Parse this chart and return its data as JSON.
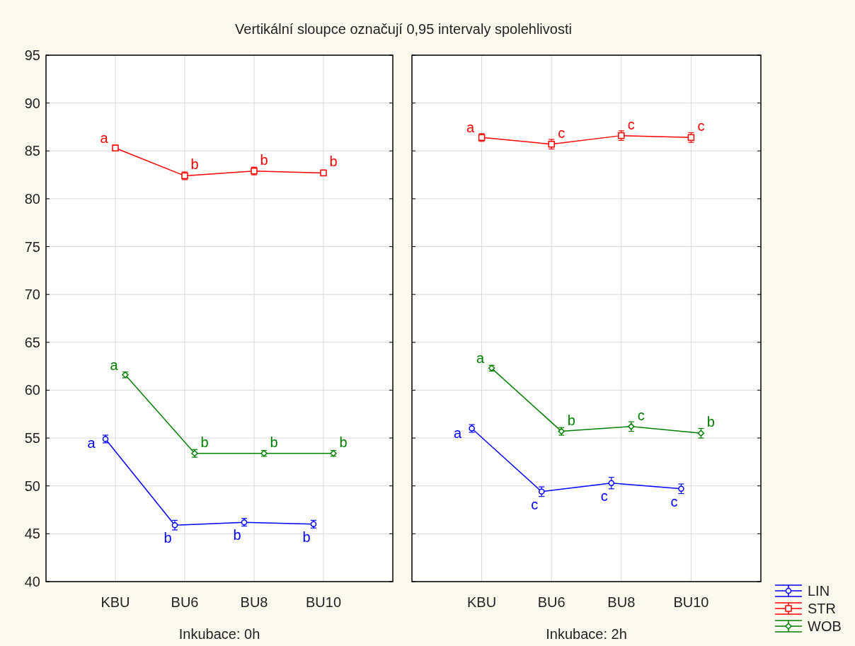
{
  "chart_data": [
    {
      "type": "line",
      "title": "Vertikální sloupce označují 0,95 intervaly spolehlivosti",
      "xlabel": "Inkubace: 0h",
      "categories": [
        "KBU",
        "BU6",
        "BU8",
        "BU10"
      ],
      "ylim": [
        40,
        95
      ],
      "yticks": [
        40,
        45,
        50,
        55,
        60,
        65,
        70,
        75,
        80,
        85,
        90,
        95
      ],
      "grid": true,
      "legend": "bottom right",
      "series": [
        {
          "name": "LIN",
          "color": "#0000ff",
          "marker": "circle",
          "values": [
            54.9,
            45.9,
            46.2,
            46.0
          ],
          "errors": [
            0.4,
            0.5,
            0.4,
            0.4
          ]
        },
        {
          "name": "STR",
          "color": "#ff0000",
          "marker": "square",
          "values": [
            85.3,
            82.4,
            82.9,
            82.7
          ],
          "errors": [
            0.3,
            0.4,
            0.4,
            0.3
          ]
        },
        {
          "name": "WOB",
          "color": "#008000",
          "marker": "diamond",
          "values": [
            61.6,
            53.4,
            53.4,
            53.4
          ],
          "errors": [
            0.3,
            0.4,
            0.3,
            0.3
          ]
        }
      ],
      "annotations": [
        "a",
        "b",
        "b",
        "b",
        "a",
        "b",
        "b",
        "b",
        "a",
        "b",
        "b",
        "b"
      ]
    },
    {
      "type": "line",
      "xlabel": "Inkubace: 2h",
      "categories": [
        "KBU",
        "BU6",
        "BU8",
        "BU10"
      ],
      "ylim": [
        40,
        95
      ],
      "yticks": [
        40,
        45,
        50,
        55,
        60,
        65,
        70,
        75,
        80,
        85,
        90,
        95
      ],
      "grid": true,
      "tick_labels": "x",
      "series": [
        {
          "color": "#0000ff",
          "marker": "circle",
          "values": [
            56.0,
            49.4,
            50.3,
            49.7
          ],
          "errors": [
            0.4,
            0.5,
            0.6,
            0.5
          ]
        },
        {
          "color": "#ff0000",
          "marker": "square",
          "values": [
            86.4,
            85.7,
            86.6,
            86.4
          ],
          "errors": [
            0.4,
            0.5,
            0.5,
            0.5
          ]
        },
        {
          "color": "#008000",
          "marker": "diamond",
          "values": [
            62.3,
            55.7,
            56.2,
            55.5
          ],
          "errors": [
            0.3,
            0.4,
            0.5,
            0.5
          ]
        }
      ],
      "annotations": [
        "a",
        "c",
        "c",
        "c",
        "a",
        "c",
        "c",
        "c",
        "a",
        "b",
        "c",
        "b"
      ]
    }
  ]
}
